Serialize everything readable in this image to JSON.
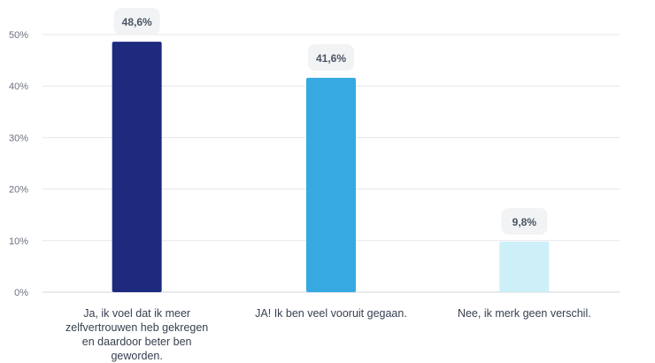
{
  "chart_data": {
    "type": "bar",
    "categories": [
      "Ja, ik voel dat ik meer zelfvertrouwen heb gekregen en daardoor beter ben geworden.",
      "JA! Ik ben veel vooruit gegaan.",
      "Nee, ik merk geen verschil."
    ],
    "values": [
      48.6,
      41.6,
      9.8
    ],
    "value_labels": [
      "48,6%",
      "41,6%",
      "9,8%"
    ],
    "colors": [
      "#1e2a7e",
      "#36a9e1",
      "#cdf0f8"
    ],
    "ylim": [
      0,
      50
    ],
    "yticks": [
      0,
      10,
      20,
      30,
      40,
      50
    ],
    "ytick_labels": [
      "0%",
      "10%",
      "20%",
      "30%",
      "40%",
      "50%"
    ],
    "grid": true,
    "title": "",
    "xlabel": "",
    "ylabel": ""
  }
}
